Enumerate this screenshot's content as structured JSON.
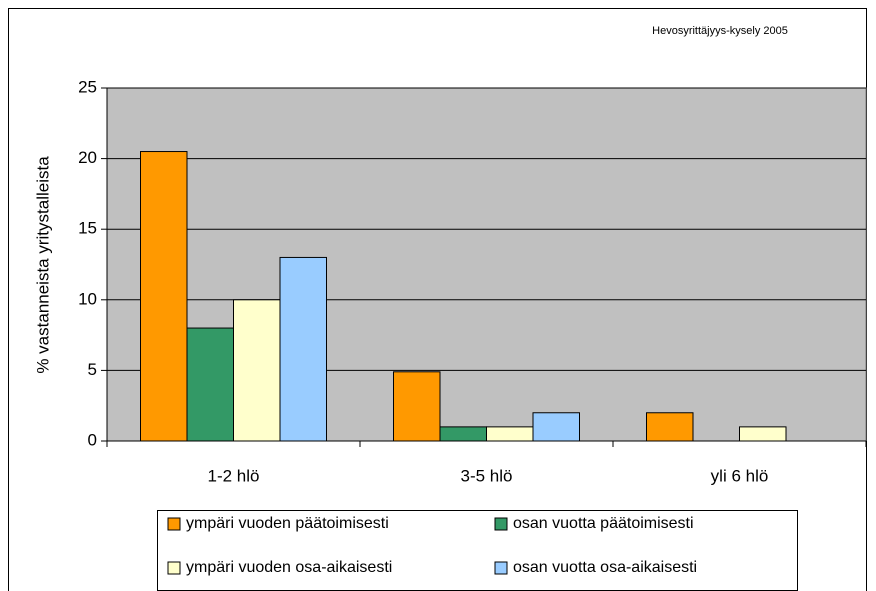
{
  "chart_data": {
    "type": "bar",
    "annotation": "Hevosyrittäjyys-kysely 2005",
    "y_label": "% vastanneista yritystalleista",
    "categories": [
      "1-2 hlö",
      "3-5 hlö",
      "yli 6 hlö"
    ],
    "series": [
      {
        "name": "ympäri vuoden päätoimisesti",
        "color": "#ff9900",
        "values": [
          20.5,
          4.9,
          2.0
        ]
      },
      {
        "name": "osan vuotta päätoimisesti",
        "color": "#339966",
        "values": [
          8.0,
          1.0,
          0
        ]
      },
      {
        "name": "ympäri vuoden osa-aikaisesti",
        "color": "#ffffcc",
        "values": [
          10.0,
          1.0,
          1.0
        ]
      },
      {
        "name": "osan vuotta osa-aikaisesti",
        "color": "#99ccff",
        "values": [
          13.0,
          2.0,
          0
        ]
      }
    ],
    "ylim": [
      0,
      25
    ],
    "yticks": [
      0,
      5,
      10,
      15,
      20,
      25
    ],
    "grid": true
  }
}
